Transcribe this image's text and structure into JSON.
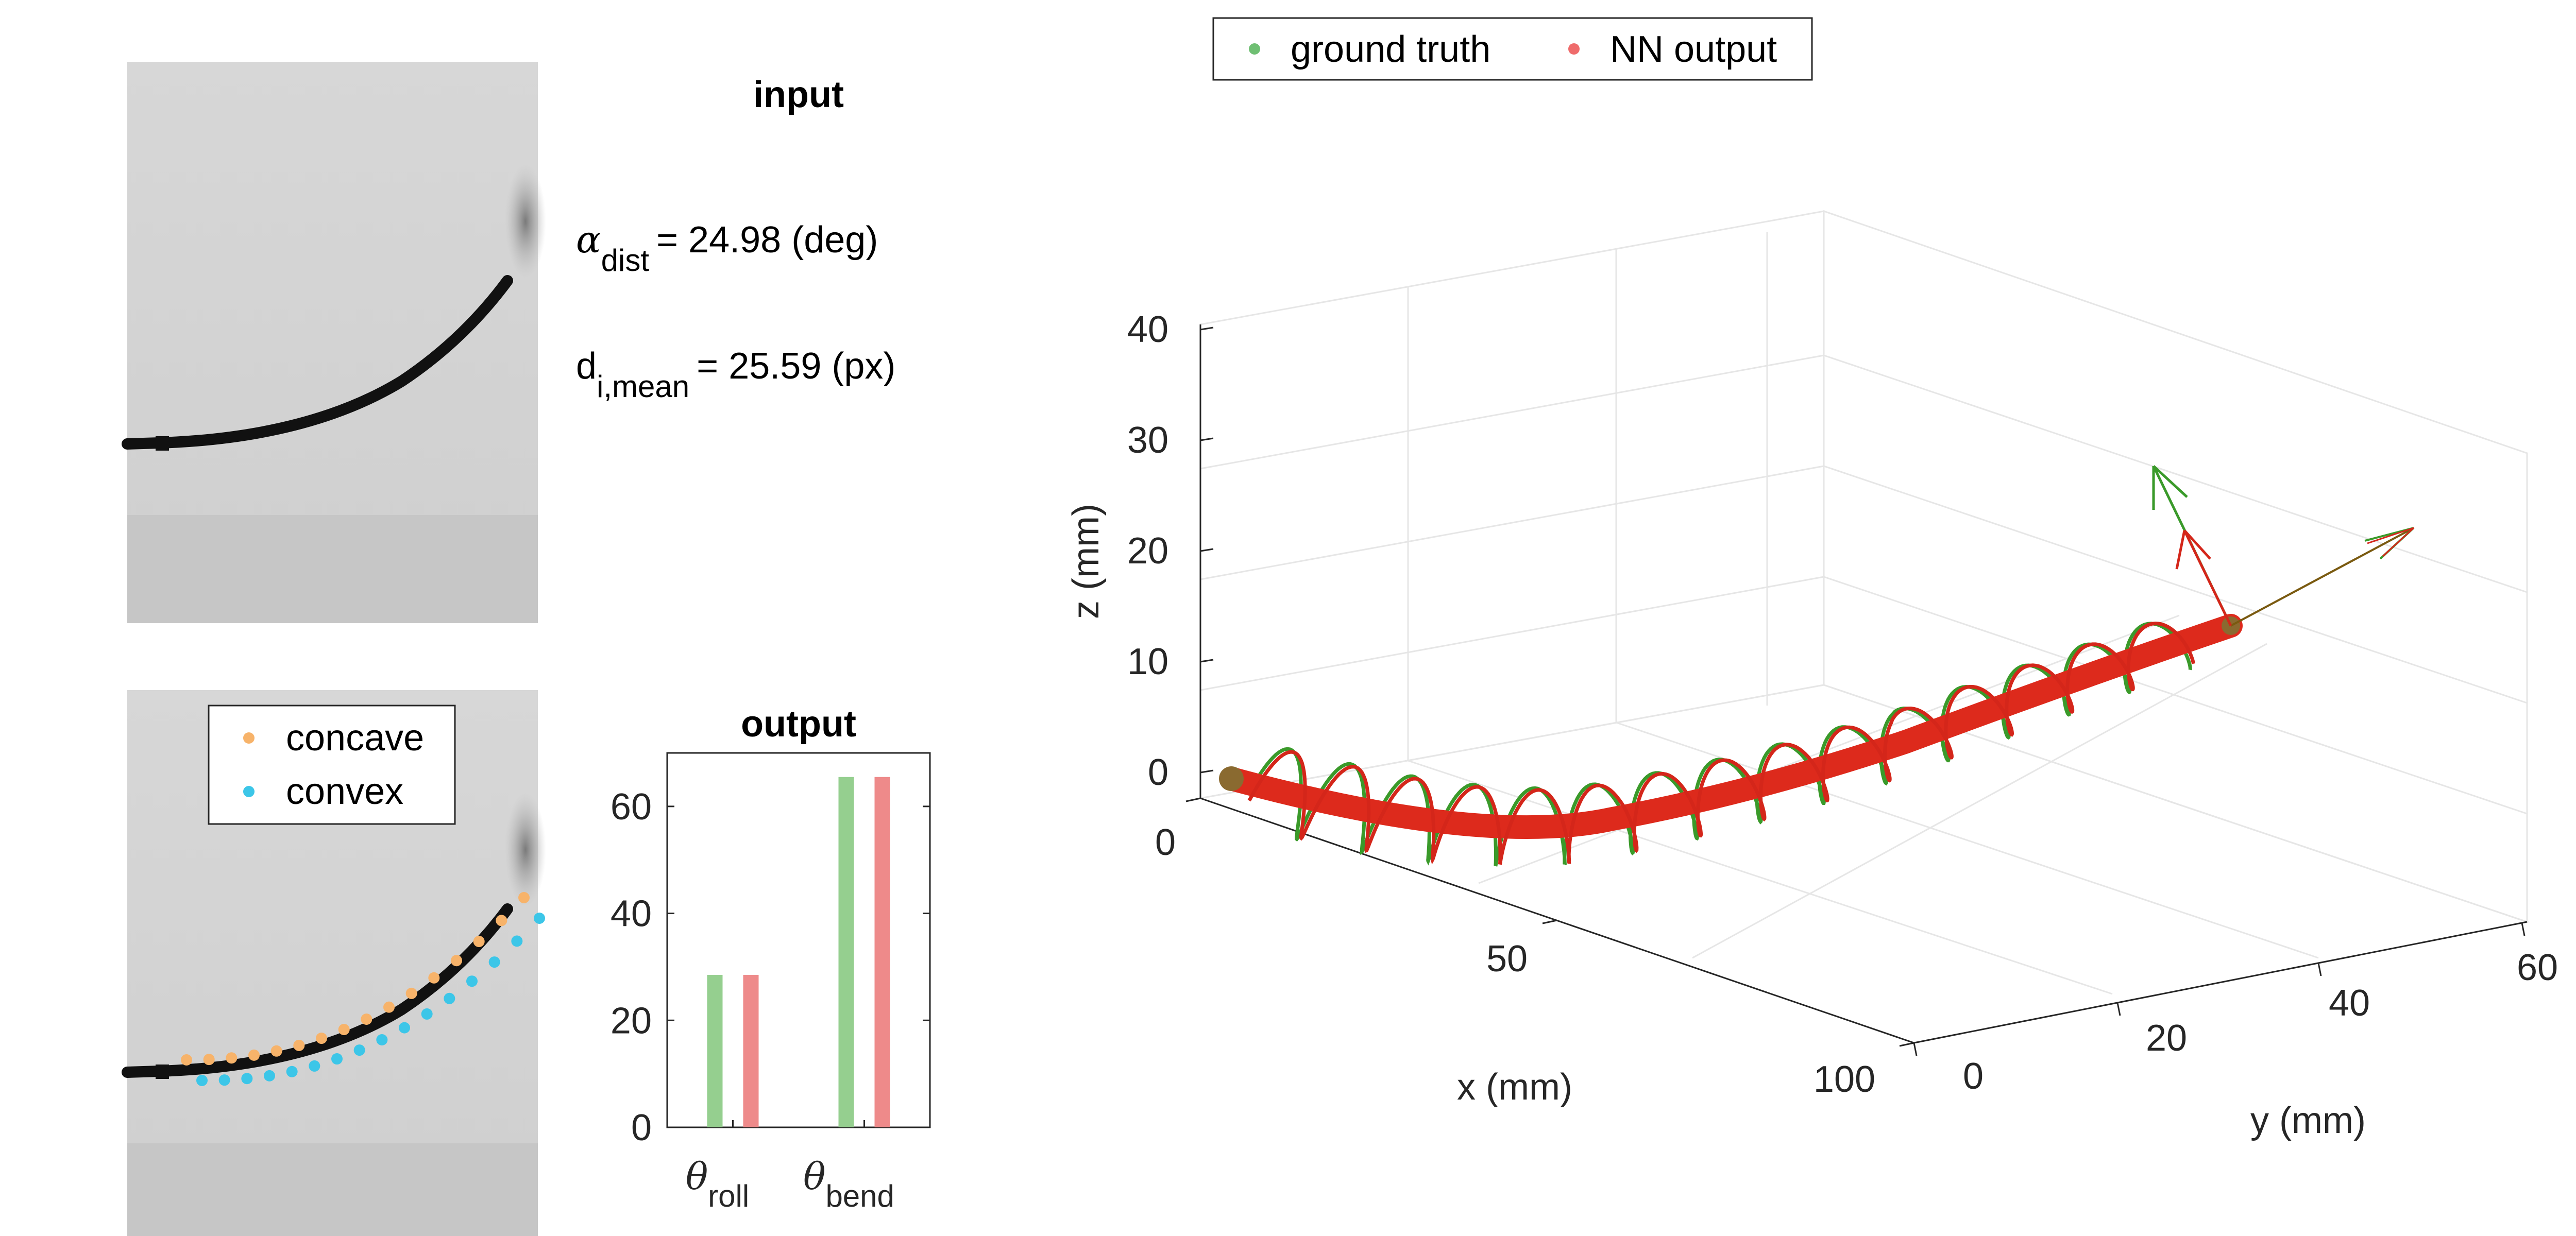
{
  "input_panel": {
    "title": "input",
    "alpha_label": "α",
    "alpha_sub": "dist",
    "alpha_value_text": "= 24.98 (deg)",
    "d_label": "d",
    "d_sub": "i,mean",
    "d_value_text": "= 25.59 (px)"
  },
  "legend_points": {
    "items": [
      {
        "label": "concave",
        "color": "#f7b36a"
      },
      {
        "label": "convex",
        "color": "#3cc6e8"
      }
    ]
  },
  "legend_3d": {
    "items": [
      {
        "label": "ground truth",
        "color": "#6fbf73"
      },
      {
        "label": "NN output",
        "color": "#ef6b6b"
      }
    ]
  },
  "colors": {
    "ground_truth": "#95cf8f",
    "nn_output": "#ee8a8a",
    "tube": "#dd2a1c",
    "gt_line": "#3a9a2a",
    "nn_line": "#d4261a"
  },
  "chart_data": [
    {
      "type": "bar",
      "title": "output",
      "categories": [
        "θroll",
        "θbend"
      ],
      "category_labels": [
        {
          "symbol": "θ",
          "sub": "roll"
        },
        {
          "symbol": "θ",
          "sub": "bend"
        }
      ],
      "series": [
        {
          "name": "ground truth",
          "color": "#95cf8f",
          "values": [
            28.5,
            65.5
          ]
        },
        {
          "name": "NN output",
          "color": "#ee8a8a",
          "values": [
            28.5,
            65.5
          ]
        }
      ],
      "ylim": [
        0,
        70
      ],
      "yticks": [
        0,
        20,
        40,
        60
      ],
      "grid": false,
      "legend": "none"
    },
    {
      "type": "line",
      "subtype": "3d",
      "xlabel": "x (mm)",
      "ylabel": "y (mm)",
      "zlabel": "z (mm)",
      "xticks": [
        0,
        50,
        100
      ],
      "yticks": [
        0,
        20,
        40,
        60
      ],
      "zticks": [
        0,
        10,
        20,
        30,
        40
      ],
      "xlim": [
        0,
        100
      ],
      "ylim": [
        0,
        65
      ],
      "zlim": [
        -3,
        40
      ],
      "grid": true,
      "legend": "top-left",
      "series": [
        {
          "name": "ground truth",
          "color": "#3a9a2a",
          "centerline": [
            {
              "x": 0,
              "y": 0,
              "z": 0
            },
            {
              "x": 15,
              "y": 3,
              "z": 0.3
            },
            {
              "x": 30,
              "y": 9,
              "z": 1.2
            },
            {
              "x": 45,
              "y": 16,
              "z": 2.6
            },
            {
              "x": 60,
              "y": 24,
              "z": 4.4
            },
            {
              "x": 75,
              "y": 33,
              "z": 6.8
            },
            {
              "x": 88,
              "y": 41,
              "z": 9.4
            },
            {
              "x": 100,
              "y": 48,
              "z": 12.5
            }
          ]
        },
        {
          "name": "NN output",
          "color": "#d4261a",
          "centerline": [
            {
              "x": 0,
              "y": 0,
              "z": 0
            },
            {
              "x": 15,
              "y": 3,
              "z": 0.3
            },
            {
              "x": 30,
              "y": 9,
              "z": 1.2
            },
            {
              "x": 45,
              "y": 16,
              "z": 2.6
            },
            {
              "x": 60,
              "y": 24,
              "z": 4.4
            },
            {
              "x": 75,
              "y": 33,
              "z": 6.8
            },
            {
              "x": 88,
              "y": 41,
              "z": 9.4
            },
            {
              "x": 100,
              "y": 48,
              "z": 12.5
            }
          ]
        }
      ]
    }
  ]
}
